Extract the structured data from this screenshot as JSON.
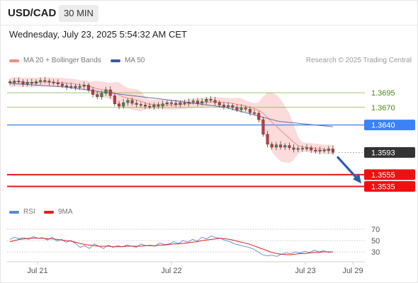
{
  "header": {
    "symbol": "USD/CAD",
    "interval": "30 MIN"
  },
  "timestamp": "Wednesday, July 23, 2025 5:54:32 AM CET",
  "legend": {
    "items": [
      {
        "label": "MA 20 + Bollinger Bands",
        "color": "#f28b82"
      },
      {
        "label": "MA 50",
        "color": "#3d5a9e"
      }
    ],
    "credit": "Research © 2025 Trading Central"
  },
  "rsi_legend": {
    "items": [
      {
        "label": "RSI",
        "color": "#5a86d6"
      },
      {
        "label": "9MA",
        "color": "#e02020"
      }
    ]
  },
  "colors": {
    "resistance": "#7cb342",
    "pivot": "#3b82f6",
    "support": "#ee1111",
    "price": "#333333",
    "forecast_arrow": "#2a5fa8",
    "bollinger_fill": "#fbd5d5"
  },
  "chart_data": [
    {
      "type": "candlestick",
      "title": "USD/CAD 30 MIN",
      "x_ticks": [
        "Jul 21",
        "Jul 22",
        "Jul 23",
        "Jul 29"
      ],
      "ylim": [
        1.3515,
        1.3735
      ],
      "price_levels": [
        {
          "label": "1.3695",
          "value": 1.3695,
          "kind": "resistance"
        },
        {
          "label": "1.3670",
          "value": 1.367,
          "kind": "resistance"
        },
        {
          "label": "1.3640",
          "value": 1.364,
          "kind": "pivot"
        },
        {
          "label": "1.3593",
          "value": 1.3593,
          "kind": "last-price"
        },
        {
          "label": "1.3555",
          "value": 1.3555,
          "kind": "support"
        },
        {
          "label": "1.3535",
          "value": 1.3535,
          "kind": "support"
        }
      ],
      "close_series": [
        1.3712,
        1.3715,
        1.3714,
        1.371,
        1.3713,
        1.3711,
        1.3714,
        1.3716,
        1.3715,
        1.3713,
        1.3712,
        1.371,
        1.3707,
        1.3705,
        1.3706,
        1.3704,
        1.3706,
        1.3708,
        1.37,
        1.3692,
        1.3688,
        1.3694,
        1.37,
        1.369,
        1.3676,
        1.3672,
        1.3678,
        1.3682,
        1.3677,
        1.3675,
        1.3674,
        1.3672,
        1.3671,
        1.3674,
        1.3672,
        1.3676,
        1.3678,
        1.3677,
        1.3675,
        1.3678,
        1.3677,
        1.3679,
        1.3681,
        1.3677,
        1.368,
        1.3684,
        1.3682,
        1.3678,
        1.3674,
        1.3671,
        1.3673,
        1.367,
        1.3666,
        1.3669,
        1.3667,
        1.3661,
        1.366,
        1.3649,
        1.3624,
        1.3607,
        1.3602,
        1.3606,
        1.3602,
        1.3605,
        1.3601,
        1.3598,
        1.36,
        1.3599,
        1.3601,
        1.3597,
        1.3595,
        1.3597,
        1.3596,
        1.3599,
        1.3593
      ],
      "ma50_series": [
        1.3711,
        1.3705,
        1.3693,
        1.3682,
        1.367,
        1.3646,
        1.3637
      ],
      "forecast": {
        "from": 1.3593,
        "to": 1.354
      }
    },
    {
      "type": "line",
      "title": "RSI",
      "series": [
        {
          "name": "RSI",
          "values": [
            52,
            56,
            53,
            55,
            52,
            57,
            54,
            55,
            51,
            56,
            49,
            52,
            47,
            50,
            45,
            38,
            41,
            36,
            44,
            40,
            36,
            42,
            38,
            41,
            39,
            42,
            40,
            38,
            44,
            41,
            42,
            40,
            46,
            43,
            44,
            48,
            45,
            50,
            47,
            52,
            49,
            56,
            53,
            58,
            55,
            54,
            50,
            48,
            44,
            42,
            40,
            38,
            35,
            30,
            25,
            23,
            24,
            22,
            26,
            28,
            27,
            30,
            28,
            31,
            29,
            33,
            30,
            32,
            29,
            30
          ]
        },
        {
          "name": "9MA",
          "values": [
            48,
            50,
            52,
            53,
            54,
            54,
            54,
            54,
            53,
            53,
            52,
            51,
            50,
            49,
            47,
            45,
            43,
            42,
            41,
            40,
            40,
            40,
            39,
            39,
            39,
            40,
            40,
            40,
            40,
            41,
            41,
            41,
            42,
            42,
            43,
            44,
            44,
            45,
            46,
            47,
            48,
            50,
            51,
            52,
            53,
            54,
            53,
            52,
            50,
            48,
            46,
            44,
            41,
            38,
            35,
            32,
            29,
            27,
            26,
            25,
            25,
            26,
            27,
            27,
            28,
            29,
            29,
            30,
            30,
            30
          ]
        }
      ],
      "y_ticks": [
        70,
        50,
        30
      ],
      "ylim": [
        15,
        85
      ]
    }
  ]
}
